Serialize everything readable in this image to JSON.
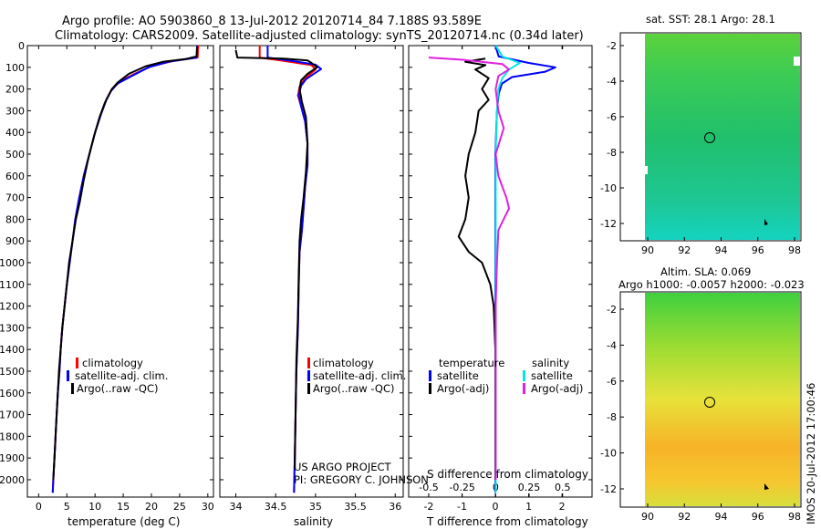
{
  "titles": {
    "line1": "Argo profile: AO 5903860_8 13-Jul-2012 20120714_84 7.188S 93.589E",
    "line2": "Climatology: CARS2009. Satellite-adjusted climatology: synTS_20120714.nc (0.34d later)"
  },
  "panels": {
    "temperature": {
      "xlabel": "temperature (deg C)"
    },
    "salinity": {
      "xlabel": "salinity"
    },
    "difference": {
      "xlabel_bottom": "T difference from climatology",
      "xlabel_top": "S difference from climatology"
    }
  },
  "legends": {
    "profile": [
      {
        "label": "climatology",
        "color": "#ff0000"
      },
      {
        "label": "satellite-adj. clim.",
        "color": "#0000ff"
      },
      {
        "label": "Argo(..raw -QC)",
        "color": "#000000"
      }
    ],
    "difference": {
      "temperature_title": "temperature",
      "salinity_title": "salinity",
      "items": [
        {
          "label": "satellite",
          "color": "#0000ff"
        },
        {
          "label": "Argo(-adj)",
          "color": "#000000"
        },
        {
          "label": "satellite",
          "color": "#00e5e5"
        },
        {
          "label": "Argo(-adj)",
          "color": "#e020e0"
        }
      ]
    }
  },
  "annotations": {
    "project": "US ARGO PROJECT",
    "pi": "PI: GREGORY C. JOHNSON",
    "watermark": "IMOS 20-Jul-2012 17:00:46"
  },
  "maps": {
    "sst": {
      "title": "sat. SST: 28.1  Argo: 28.1",
      "x_ticks": [
        "90",
        "92",
        "94",
        "96",
        "98"
      ],
      "y_ticks": [
        "-2",
        "-4",
        "-6",
        "-8",
        "-10",
        "-12"
      ]
    },
    "sla": {
      "title": "Altim. SLA: 0.069",
      "subtitle": "Argo h1000: -0.0057 h2000: -0.023",
      "x_ticks": [
        "90",
        "92",
        "94",
        "96",
        "98"
      ],
      "y_ticks": [
        "-2",
        "-4",
        "-6",
        "-8",
        "-10",
        "-12"
      ]
    }
  },
  "chart_data": [
    {
      "type": "line",
      "title": "",
      "xlabel": "temperature (deg C)",
      "ylabel": "",
      "y_inverted": true,
      "xlim": [
        -2,
        31
      ],
      "ylim": [
        2080,
        0
      ],
      "x_ticks": [
        0,
        5,
        10,
        15,
        20,
        25,
        30
      ],
      "y_ticks": [
        0,
        100,
        200,
        300,
        400,
        500,
        600,
        700,
        800,
        900,
        1000,
        1100,
        1200,
        1300,
        1400,
        1500,
        1600,
        1700,
        1800,
        1900,
        2000
      ],
      "series": [
        {
          "name": "climatology",
          "color": "#ff0000",
          "points": [
            [
              28.3,
              0
            ],
            [
              28.2,
              55
            ],
            [
              24,
              70
            ],
            [
              20,
              95
            ],
            [
              17,
              130
            ],
            [
              14.5,
              165
            ],
            [
              13,
              200
            ],
            [
              12,
              250
            ],
            [
              11,
              320
            ],
            [
              10,
              400
            ],
            [
              9,
              500
            ],
            [
              8,
              600
            ],
            [
              7.2,
              700
            ],
            [
              6.5,
              800
            ],
            [
              6,
              900
            ],
            [
              5.5,
              1000
            ],
            [
              5,
              1100
            ],
            [
              4.6,
              1200
            ],
            [
              4.2,
              1300
            ],
            [
              3.9,
              1400
            ],
            [
              3.7,
              1500
            ],
            [
              3.4,
              1600
            ],
            [
              3.2,
              1700
            ],
            [
              3.0,
              1800
            ],
            [
              2.8,
              1900
            ],
            [
              2.6,
              2000
            ],
            [
              2.5,
              2060
            ]
          ]
        },
        {
          "name": "satellite-adj. clim.",
          "color": "#0000ff",
          "points": [
            [
              28.1,
              0
            ],
            [
              28.0,
              55
            ],
            [
              23,
              75
            ],
            [
              19.5,
              100
            ],
            [
              16.5,
              140
            ],
            [
              14,
              175
            ],
            [
              12.8,
              210
            ],
            [
              12,
              250
            ],
            [
              11,
              320
            ],
            [
              10,
              400
            ],
            [
              9,
              500
            ],
            [
              8,
              600
            ],
            [
              7.2,
              700
            ],
            [
              6.5,
              800
            ],
            [
              6,
              900
            ],
            [
              5.5,
              1000
            ],
            [
              5,
              1100
            ],
            [
              4.6,
              1200
            ],
            [
              4.2,
              1300
            ],
            [
              3.9,
              1400
            ],
            [
              3.7,
              1500
            ],
            [
              3.4,
              1600
            ],
            [
              3.2,
              1700
            ],
            [
              3.0,
              1800
            ],
            [
              2.8,
              1900
            ],
            [
              2.6,
              2000
            ],
            [
              2.5,
              2060
            ]
          ]
        },
        {
          "name": "Argo(..raw -QC)",
          "color": "#000000",
          "points": [
            [
              28.1,
              5
            ],
            [
              28.0,
              50
            ],
            [
              26,
              62
            ],
            [
              22,
              75
            ],
            [
              19,
              95
            ],
            [
              16,
              130
            ],
            [
              14,
              170
            ],
            [
              13,
              200
            ],
            [
              11.8,
              260
            ],
            [
              10.8,
              330
            ],
            [
              9.8,
              420
            ],
            [
              8.8,
              520
            ],
            [
              8,
              620
            ],
            [
              7.3,
              720
            ],
            [
              6.6,
              800
            ],
            [
              6,
              900
            ],
            [
              5.4,
              1000
            ],
            [
              5,
              1100
            ],
            [
              4.6,
              1200
            ],
            [
              4.2,
              1300
            ],
            [
              3.9,
              1400
            ],
            [
              3.6,
              1500
            ],
            [
              3.4,
              1600
            ],
            [
              3.2,
              1700
            ],
            [
              3.0,
              1800
            ],
            [
              2.8,
              1900
            ],
            [
              2.6,
              2000
            ]
          ]
        }
      ]
    },
    {
      "type": "line",
      "title": "",
      "xlabel": "salinity",
      "ylabel": "",
      "y_inverted": true,
      "xlim": [
        33.8,
        36.1
      ],
      "ylim": [
        2080,
        0
      ],
      "x_ticks": [
        34,
        34.5,
        35,
        35.5,
        36
      ],
      "y_ticks": [
        0,
        100,
        200,
        300,
        400,
        500,
        600,
        700,
        800,
        900,
        1000,
        1100,
        1200,
        1300,
        1400,
        1500,
        1600,
        1700,
        1800,
        1900,
        2000
      ],
      "series": [
        {
          "name": "climatology",
          "color": "#ff0000",
          "points": [
            [
              34.3,
              0
            ],
            [
              34.3,
              55
            ],
            [
              34.6,
              70
            ],
            [
              34.95,
              90
            ],
            [
              35.0,
              110
            ],
            [
              34.92,
              135
            ],
            [
              34.85,
              160
            ],
            [
              34.8,
              190
            ],
            [
              34.78,
              230
            ],
            [
              34.82,
              280
            ],
            [
              34.87,
              350
            ],
            [
              34.9,
              450
            ],
            [
              34.9,
              550
            ],
            [
              34.87,
              650
            ],
            [
              34.85,
              750
            ],
            [
              34.83,
              850
            ],
            [
              34.8,
              950
            ],
            [
              34.79,
              1100
            ],
            [
              34.78,
              1300
            ],
            [
              34.76,
              1500
            ],
            [
              34.75,
              1700
            ],
            [
              34.74,
              1900
            ],
            [
              34.73,
              2060
            ]
          ]
        },
        {
          "name": "satellite-adj. clim.",
          "color": "#0000ff",
          "points": [
            [
              34.4,
              0
            ],
            [
              34.4,
              55
            ],
            [
              34.7,
              70
            ],
            [
              35.0,
              88
            ],
            [
              35.07,
              108
            ],
            [
              34.98,
              130
            ],
            [
              34.88,
              155
            ],
            [
              34.82,
              185
            ],
            [
              34.79,
              230
            ],
            [
              34.82,
              280
            ],
            [
              34.87,
              350
            ],
            [
              34.9,
              450
            ],
            [
              34.9,
              550
            ],
            [
              34.87,
              650
            ],
            [
              34.85,
              750
            ],
            [
              34.83,
              850
            ],
            [
              34.8,
              950
            ],
            [
              34.79,
              1100
            ],
            [
              34.78,
              1300
            ],
            [
              34.76,
              1500
            ],
            [
              34.75,
              1700
            ],
            [
              34.74,
              1900
            ],
            [
              34.73,
              2060
            ]
          ]
        },
        {
          "name": "Argo(..raw -QC)",
          "color": "#000000",
          "points": [
            [
              34.0,
              20
            ],
            [
              34.02,
              55
            ],
            [
              34.6,
              60
            ],
            [
              34.9,
              68
            ],
            [
              34.95,
              80
            ],
            [
              35.02,
              100
            ],
            [
              34.9,
              130
            ],
            [
              34.82,
              160
            ],
            [
              34.8,
              200
            ],
            [
              34.83,
              260
            ],
            [
              34.88,
              330
            ],
            [
              34.9,
              450
            ],
            [
              34.88,
              580
            ],
            [
              34.85,
              700
            ],
            [
              34.82,
              800
            ],
            [
              34.8,
              900
            ],
            [
              34.79,
              1050
            ],
            [
              34.78,
              1250
            ],
            [
              34.76,
              1450
            ],
            [
              34.75,
              1700
            ],
            [
              34.74,
              1950
            ]
          ]
        }
      ]
    },
    {
      "type": "line",
      "title": "",
      "xlabel": "T difference from climatology",
      "x2label": "S difference from climatology",
      "ylabel": "",
      "y_inverted": true,
      "xlim": [
        -2.6,
        2.9
      ],
      "x2lim": [
        -0.65,
        0.72
      ],
      "ylim": [
        2080,
        0
      ],
      "x_ticks": [
        -2,
        -1,
        0,
        1,
        2
      ],
      "x2_ticks": [
        "-0.5",
        "-0.25",
        "0",
        "0.25",
        "0.5"
      ],
      "series": [
        {
          "name": "satellite",
          "axis": "T",
          "color": "#0000ff",
          "points": [
            [
              0,
              0
            ],
            [
              0.1,
              50
            ],
            [
              1.0,
              80
            ],
            [
              1.8,
              100
            ],
            [
              1.5,
              120
            ],
            [
              0.5,
              145
            ],
            [
              0.2,
              175
            ],
            [
              0.1,
              220
            ],
            [
              0.05,
              300
            ],
            [
              0,
              500
            ],
            [
              0,
              2060
            ]
          ]
        },
        {
          "name": "Argo(-adj)",
          "axis": "T",
          "color": "#000000",
          "points": [
            [
              -0.3,
              60
            ],
            [
              -0.9,
              75
            ],
            [
              -0.3,
              90
            ],
            [
              -0.6,
              110
            ],
            [
              -0.2,
              150
            ],
            [
              -0.4,
              200
            ],
            [
              -0.2,
              250
            ],
            [
              -0.5,
              300
            ],
            [
              -0.6,
              400
            ],
            [
              -0.8,
              500
            ],
            [
              -0.9,
              600
            ],
            [
              -0.8,
              700
            ],
            [
              -0.9,
              800
            ],
            [
              -1.1,
              880
            ],
            [
              -0.8,
              950
            ],
            [
              -0.4,
              1000
            ],
            [
              -0.15,
              1100
            ],
            [
              -0.05,
              1200
            ],
            [
              0,
              1400
            ],
            [
              0,
              2000
            ]
          ]
        },
        {
          "name": "satellite",
          "axis": "S",
          "color": "#00e5e5",
          "points": [
            [
              0,
              0
            ],
            [
              0.05,
              50
            ],
            [
              0.18,
              80
            ],
            [
              0.1,
              110
            ],
            [
              0.05,
              150
            ],
            [
              0.02,
              200
            ],
            [
              0.01,
              300
            ],
            [
              0,
              500
            ],
            [
              0,
              2060
            ]
          ]
        },
        {
          "name": "Argo(-adj)",
          "axis": "S",
          "color": "#e020e0",
          "points": [
            [
              -0.5,
              55
            ],
            [
              -0.25,
              65
            ],
            [
              0.05,
              85
            ],
            [
              0.1,
              110
            ],
            [
              0.02,
              140
            ],
            [
              0.0,
              200
            ],
            [
              0.02,
              300
            ],
            [
              0.06,
              380
            ],
            [
              0.0,
              500
            ],
            [
              0.02,
              600
            ],
            [
              0.08,
              700
            ],
            [
              0.1,
              750
            ],
            [
              0.02,
              850
            ],
            [
              0.01,
              1000
            ],
            [
              0,
              1200
            ],
            [
              0,
              2000
            ]
          ]
        }
      ]
    }
  ]
}
